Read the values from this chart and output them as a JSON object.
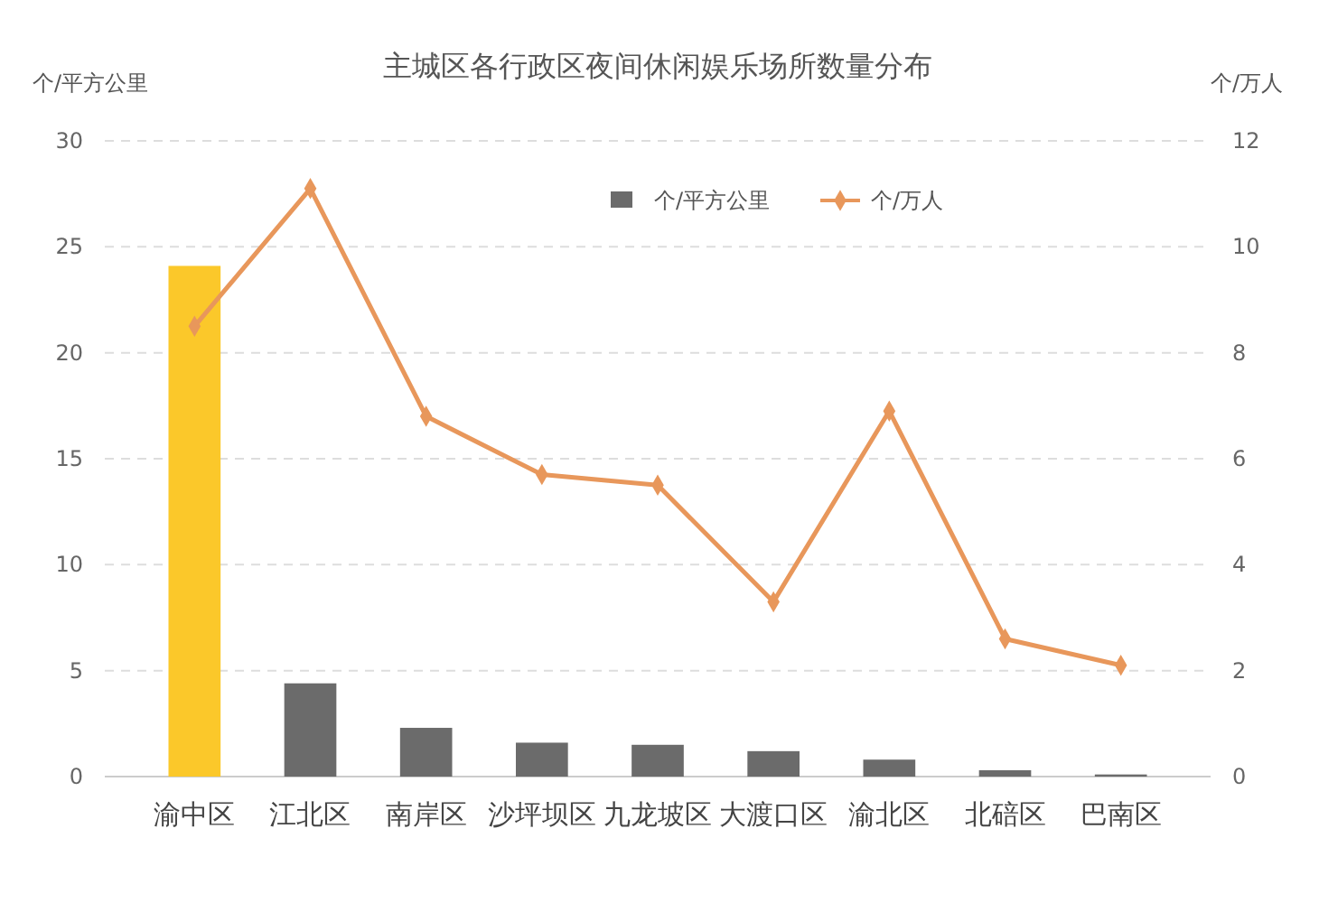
{
  "chart_data": {
    "type": "bar",
    "title": "主城区各行政区夜间休闲娱乐场所数量分布",
    "ylabel": "个/平方公里",
    "y2label": "个/万人",
    "categories": [
      "渝中区",
      "江北区",
      "南岸区",
      "沙坪坝区",
      "九龙坡区",
      "大渡口区",
      "渝北区",
      "北碚区",
      "巴南区"
    ],
    "series": [
      {
        "name": "个/平方公里",
        "color": "#6b6b6b",
        "colors": [
          "#fbc82a",
          "#6b6b6b",
          "#6b6b6b",
          "#6b6b6b",
          "#6b6b6b",
          "#6b6b6b",
          "#6b6b6b",
          "#6b6b6b",
          "#6b6b6b"
        ],
        "values": [
          24.1,
          4.4,
          2.3,
          1.6,
          1.5,
          1.2,
          0.8,
          0.3,
          0.1
        ]
      },
      {
        "name": "个/万人",
        "type": "line",
        "axis": "y2",
        "color": "#e8975b",
        "values": [
          8.5,
          11.1,
          6.8,
          5.7,
          5.5,
          3.3,
          6.9,
          2.6,
          2.1
        ]
      }
    ],
    "ylim": [
      0,
      30
    ],
    "yticks": [
      0,
      5,
      10,
      15,
      20,
      25,
      30
    ],
    "y2lim": [
      0,
      12
    ],
    "y2ticks": [
      0,
      2,
      4,
      6,
      8,
      10,
      12
    ],
    "grid": "y",
    "legend": "top right",
    "marker": "diamond",
    "line_style": "solid"
  }
}
